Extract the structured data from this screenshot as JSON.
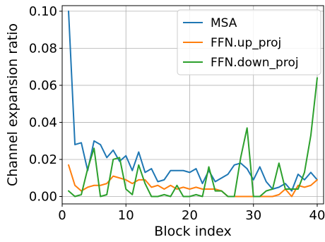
{
  "chart_data": {
    "type": "line",
    "xlabel": "Block index",
    "ylabel": "Channel expansion ratio",
    "xlim": [
      0,
      41
    ],
    "ylim": [
      -0.004,
      0.103
    ],
    "xticks": [
      0,
      10,
      20,
      30,
      40
    ],
    "yticks": [
      0.0,
      0.02,
      0.04,
      0.06,
      0.08,
      0.1
    ],
    "ytick_labels": [
      "0.00",
      "0.02",
      "0.04",
      "0.06",
      "0.08",
      "0.10"
    ],
    "grid": true,
    "legend_position": "top-right",
    "x": [
      1,
      2,
      3,
      4,
      5,
      6,
      7,
      8,
      9,
      10,
      11,
      12,
      13,
      14,
      15,
      16,
      17,
      18,
      19,
      20,
      21,
      22,
      23,
      24,
      25,
      26,
      27,
      28,
      29,
      30,
      31,
      32,
      33,
      34,
      35,
      36,
      37,
      38,
      39,
      40
    ],
    "series": [
      {
        "name": "MSA",
        "color": "#1f77b4",
        "values": [
          0.1,
          0.028,
          0.029,
          0.014,
          0.03,
          0.028,
          0.021,
          0.025,
          0.019,
          0.022,
          0.014,
          0.024,
          0.013,
          0.015,
          0.008,
          0.009,
          0.014,
          0.014,
          0.014,
          0.013,
          0.015,
          0.007,
          0.014,
          0.008,
          0.01,
          0.012,
          0.017,
          0.018,
          0.015,
          0.009,
          0.016,
          0.008,
          0.004,
          0.005,
          0.007,
          0.003,
          0.012,
          0.009,
          0.013,
          0.009
        ]
      },
      {
        "name": "FFN.up_proj",
        "color": "#ff7f0e",
        "values": [
          0.017,
          0.006,
          0.003,
          0.005,
          0.006,
          0.006,
          0.007,
          0.011,
          0.01,
          0.009,
          0.007,
          0.009,
          0.009,
          0.005,
          0.006,
          0.004,
          0.006,
          0.004,
          0.005,
          0.004,
          0.005,
          0.004,
          0.004,
          0.004,
          0.003,
          0.0,
          0.0,
          0.0,
          0.0,
          0.0,
          0.0,
          0.0,
          0.0,
          0.001,
          0.004,
          0.0,
          0.006,
          0.005,
          0.006,
          0.009
        ]
      },
      {
        "name": "FFN.down_proj",
        "color": "#2ca02c",
        "values": [
          0.003,
          0.0,
          0.001,
          0.015,
          0.026,
          0.0,
          0.001,
          0.02,
          0.021,
          0.004,
          0.001,
          0.017,
          0.007,
          0.0,
          0.0,
          0.001,
          0.0,
          0.006,
          0.0,
          0.0,
          0.001,
          0.0,
          0.016,
          0.003,
          0.003,
          0.0,
          0.0,
          0.021,
          0.037,
          0.0,
          0.0,
          0.003,
          0.004,
          0.018,
          0.004,
          0.004,
          0.004,
          0.013,
          0.033,
          0.064
        ]
      }
    ]
  }
}
